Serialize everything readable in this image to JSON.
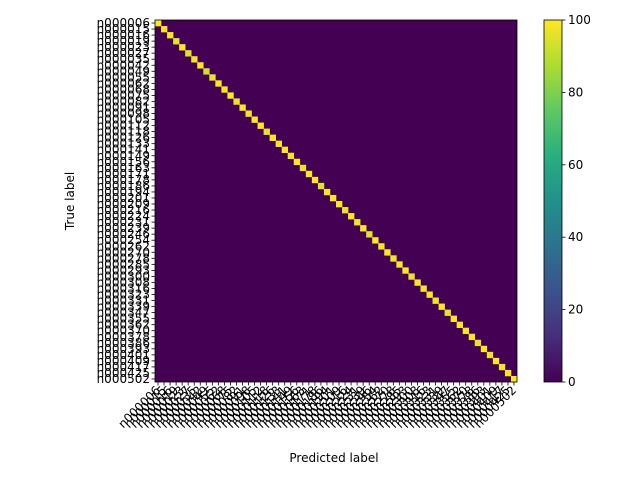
{
  "chart_data": {
    "type": "heatmap",
    "title": "",
    "xlabel": "Predicted label",
    "ylabel": "True label",
    "n_classes": 60,
    "tick_labels": [
      "n000006",
      "n000015",
      "n000016",
      "n000019",
      "n000023",
      "n000027",
      "n000035",
      "n000042",
      "n000049",
      "n000055",
      "n000062",
      "n000068",
      "n000075",
      "n000082",
      "n000091",
      "n000098",
      "n000105",
      "n000112",
      "n000118",
      "n000126",
      "n000133",
      "n000141",
      "n000149",
      "n000156",
      "n000163",
      "n000171",
      "n000178",
      "n000186",
      "n000194",
      "n000201",
      "n000209",
      "n000216",
      "n000224",
      "n000231",
      "n000239",
      "n000246",
      "n000254",
      "n000262",
      "n000270",
      "n000278",
      "n000285",
      "n000293",
      "n000300",
      "n000308",
      "n000316",
      "n000323",
      "n000331",
      "n000339",
      "n000347",
      "n000355",
      "n000362",
      "n000370",
      "n000378",
      "n000386",
      "n000393",
      "n000401",
      "n000409",
      "n000417",
      "n000425",
      "n000502"
    ],
    "diagonal_values": [
      100,
      98,
      100,
      96,
      100,
      95,
      98,
      100,
      93,
      97,
      100,
      99,
      100,
      97,
      100,
      98,
      100,
      100,
      96,
      100,
      99,
      100,
      98,
      100,
      97,
      100,
      100,
      95,
      99,
      100,
      100,
      97,
      100,
      98,
      100,
      96,
      100,
      99,
      100,
      98,
      100,
      100,
      97,
      100,
      99,
      100,
      98,
      100,
      96,
      100,
      100,
      99,
      100,
      97,
      100,
      98,
      100,
      99,
      100,
      100
    ],
    "off_diagonal_default": 0,
    "colorbar": {
      "colormap": "viridis",
      "range": [
        0,
        100
      ],
      "ticks": [
        "0",
        "20",
        "40",
        "60",
        "80",
        "100"
      ]
    },
    "grid": false
  }
}
